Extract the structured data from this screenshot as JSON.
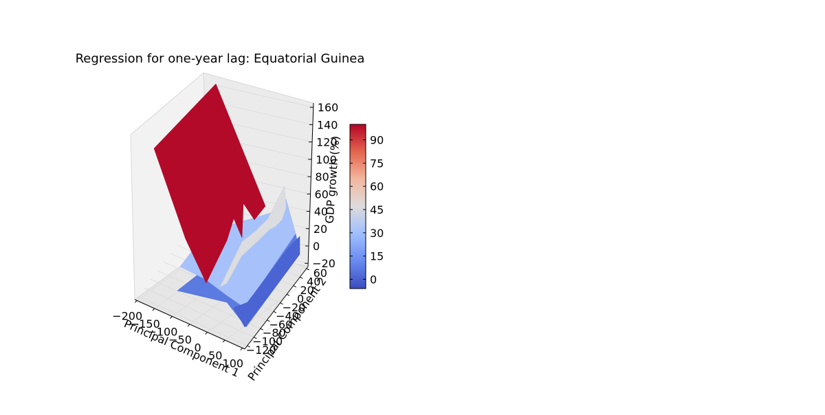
{
  "chart_data": {
    "type": "surface3d",
    "title": "Regression for one-year lag: Equatorial Guinea",
    "xlabel": "Principal Component 1",
    "ylabel": "Principal Component 2",
    "zlabel": "GDP growth (%)",
    "x_ticks": [
      "−200",
      "−150",
      "−100",
      "−50",
      "0",
      "50",
      "100"
    ],
    "y_ticks": [
      "−120",
      "−100",
      "−80",
      "−60",
      "−40",
      "−20",
      "0",
      "20",
      "40",
      "60"
    ],
    "z_ticks": [
      "−20",
      "0",
      "20",
      "40",
      "60",
      "80",
      "100",
      "120",
      "140",
      "160"
    ],
    "xlim": [
      -200,
      100
    ],
    "ylim": [
      -120,
      60
    ],
    "zlim": [
      -20,
      160
    ],
    "colorbar": {
      "ticks": [
        "0",
        "15",
        "30",
        "45",
        "60",
        "75",
        "90"
      ],
      "range": [
        -6,
        100
      ],
      "colormap": "coolwarm",
      "colors": [
        "#3b4cc0",
        "#7b9ff9",
        "#c0d4f5",
        "#dddcdc",
        "#f2cbb7",
        "#ee8468",
        "#b40426"
      ]
    },
    "surface_colors": {
      "high_plane": "#b40a2a",
      "mid_plane": "#dcdde0",
      "low_mid": "#a9c4fc",
      "low_plane": "#5f7fe3",
      "lowest": "#4a64d4"
    },
    "grid": true
  }
}
